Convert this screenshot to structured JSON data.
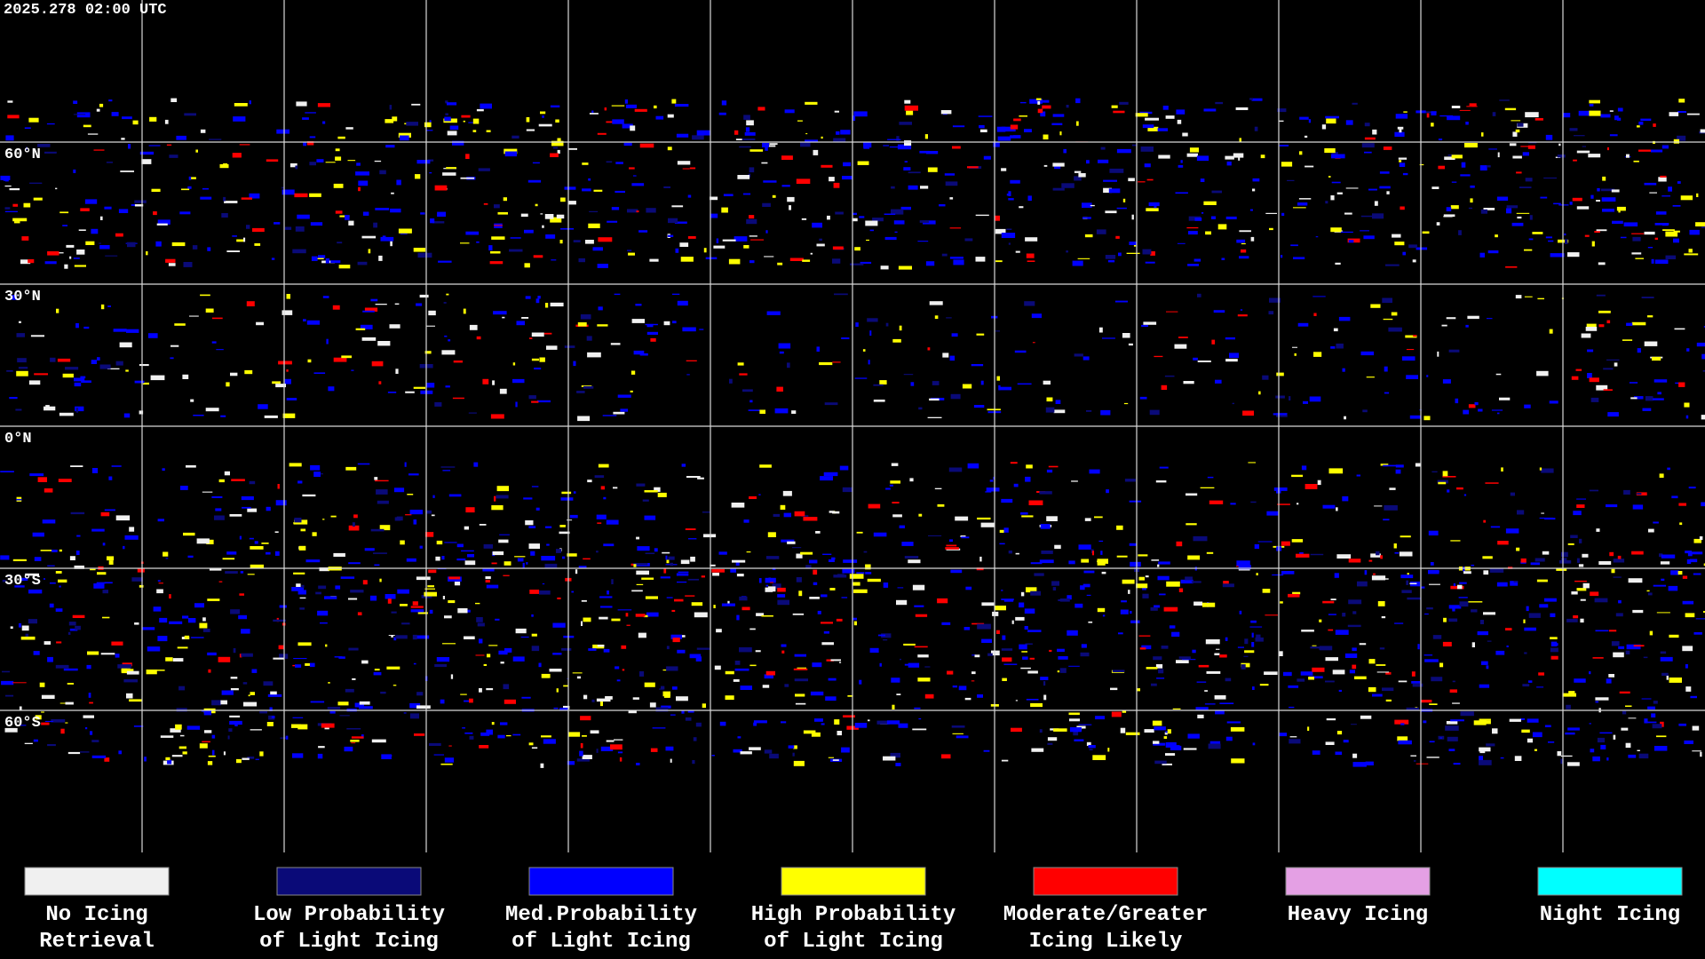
{
  "timestamp": "2025.278 02:00 UTC",
  "latitude_labels": [
    "60°N",
    "30°N",
    "0°N",
    "30°S",
    "60°S"
  ],
  "legend": [
    {
      "color": "#f0f0f0",
      "lines": [
        "No Icing",
        "Retrieval"
      ]
    },
    {
      "color": "#0a0a78",
      "lines": [
        "Low Probability",
        "of Light Icing"
      ]
    },
    {
      "color": "#0000ff",
      "lines": [
        "Med.Probability",
        "of Light Icing"
      ]
    },
    {
      "color": "#ffff00",
      "lines": [
        "High Probability",
        "of Light Icing"
      ]
    },
    {
      "color": "#ff0000",
      "lines": [
        "Moderate/Greater",
        "Icing Likely"
      ]
    },
    {
      "color": "#e4a0e4",
      "lines": [
        "Heavy Icing"
      ]
    },
    {
      "color": "#00ffff",
      "lines": [
        "Night Icing"
      ]
    }
  ]
}
